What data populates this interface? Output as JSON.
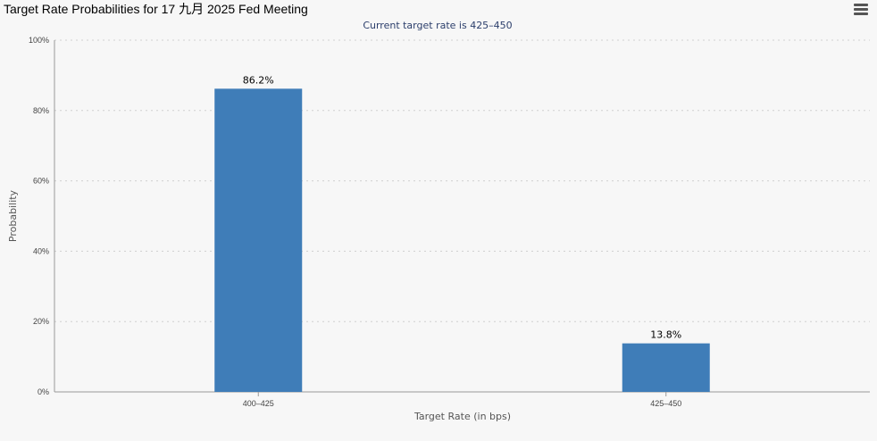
{
  "title": "Target Rate Probabilities for 17 九月 2025 Fed Meeting",
  "menu_icon": "hamburger-menu-icon",
  "chart_data": {
    "type": "bar",
    "title": "Target Rate Probabilities for 17 九月 2025 Fed Meeting",
    "subtitle": "Current target rate is 425–450",
    "categories": [
      "400–425",
      "425–450"
    ],
    "values": [
      86.2,
      13.8
    ],
    "data_labels": [
      "86.2%",
      "13.8%"
    ],
    "xlabel": "Target Rate (in bps)",
    "ylabel": "Probability",
    "ylim": [
      0,
      100
    ],
    "yticks": [
      0,
      20,
      40,
      60,
      80,
      100
    ],
    "ytick_labels": [
      "0%",
      "20%",
      "40%",
      "60%",
      "80%",
      "100%"
    ],
    "grid": true,
    "bar_color": "#3f7db8"
  }
}
